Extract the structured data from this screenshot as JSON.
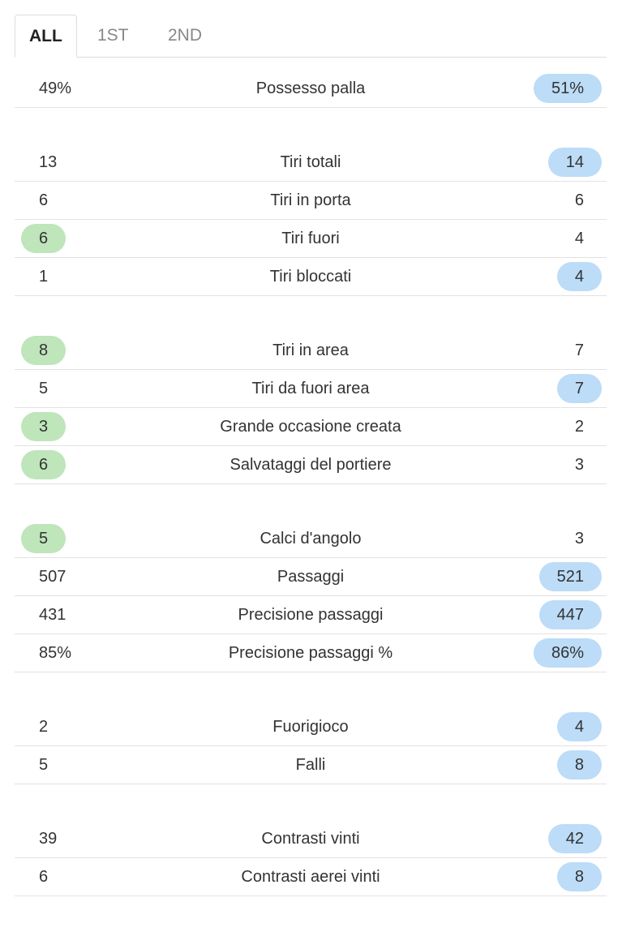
{
  "tabs": [
    {
      "label": "ALL",
      "active": true
    },
    {
      "label": "1ST",
      "active": false
    },
    {
      "label": "2ND",
      "active": false
    }
  ],
  "groups": [
    {
      "rows": [
        {
          "home": "49%",
          "label": "Possesso palla",
          "away": "51%",
          "leader": "away"
        }
      ]
    },
    {
      "rows": [
        {
          "home": "13",
          "label": "Tiri totali",
          "away": "14",
          "leader": "away"
        },
        {
          "home": "6",
          "label": "Tiri in porta",
          "away": "6"
        },
        {
          "home": "6",
          "label": "Tiri fuori",
          "away": "4",
          "leader": "home"
        },
        {
          "home": "1",
          "label": "Tiri bloccati",
          "away": "4",
          "leader": "away"
        }
      ]
    },
    {
      "rows": [
        {
          "home": "8",
          "label": "Tiri in area",
          "away": "7",
          "leader": "home"
        },
        {
          "home": "5",
          "label": "Tiri da fuori area",
          "away": "7",
          "leader": "away"
        },
        {
          "home": "3",
          "label": "Grande occasione creata",
          "away": "2",
          "leader": "home"
        },
        {
          "home": "6",
          "label": "Salvataggi del portiere",
          "away": "3",
          "leader": "home"
        }
      ]
    },
    {
      "rows": [
        {
          "home": "5",
          "label": "Calci d'angolo",
          "away": "3",
          "leader": "home"
        },
        {
          "home": "507",
          "label": "Passaggi",
          "away": "521",
          "leader": "away"
        },
        {
          "home": "431",
          "label": "Precisione passaggi",
          "away": "447",
          "leader": "away"
        },
        {
          "home": "85%",
          "label": "Precisione passaggi %",
          "away": "86%",
          "leader": "away"
        }
      ]
    },
    {
      "rows": [
        {
          "home": "2",
          "label": "Fuorigioco",
          "away": "4",
          "leader": "away"
        },
        {
          "home": "5",
          "label": "Falli",
          "away": "8",
          "leader": "away"
        }
      ]
    },
    {
      "rows": [
        {
          "home": "39",
          "label": "Contrasti vinti",
          "away": "42",
          "leader": "away"
        },
        {
          "home": "6",
          "label": "Contrasti aerei vinti",
          "away": "8",
          "leader": "away"
        }
      ]
    }
  ]
}
